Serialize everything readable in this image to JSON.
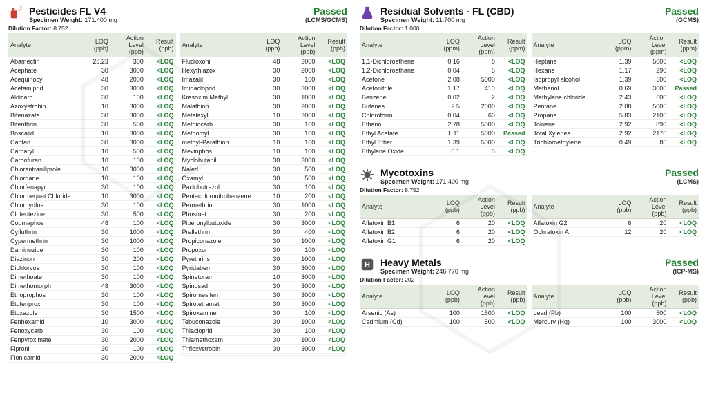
{
  "ui": {
    "col_analyte": "Analyte",
    "col_loq_ppb": "LOQ (ppb)",
    "col_loq_ppm": "LOQ (ppm)",
    "col_action_ppb": "Action Level (ppb)",
    "col_action_ppm": "Action Level (ppm)",
    "col_result_ppb": "Result (ppb)",
    "col_result_ppm": "Result (ppm)",
    "specimen_label": "Specimen Weight:",
    "dilution_label": "Dilution Factor:",
    "loq_text": "<LOQ",
    "passed_text": "Passed",
    "colors": {
      "pass_green": "#1a8a2b",
      "header_bg": "#e4ece0",
      "icon_red": "#d33a2c",
      "icon_purple": "#6d3fb3",
      "icon_grey": "#555"
    }
  },
  "pesticides": {
    "title": "Pesticides FL V4",
    "specimen": "171.400 mg",
    "status": "Passed",
    "method": "(LCMS/GCMS)",
    "dilution": "8.752",
    "left": [
      {
        "a": "Abamectin",
        "loq": "28.23",
        "al": "300",
        "r": "<LOQ"
      },
      {
        "a": "Acephate",
        "loq": "30",
        "al": "3000",
        "r": "<LOQ"
      },
      {
        "a": "Acequinocyl",
        "loq": "48",
        "al": "2000",
        "r": "<LOQ"
      },
      {
        "a": "Acetamiprid",
        "loq": "30",
        "al": "3000",
        "r": "<LOQ"
      },
      {
        "a": "Aldicarb",
        "loq": "30",
        "al": "100",
        "r": "<LOQ"
      },
      {
        "a": "Azoxystrobin",
        "loq": "10",
        "al": "3000",
        "r": "<LOQ"
      },
      {
        "a": "Bifenazate",
        "loq": "30",
        "al": "3000",
        "r": "<LOQ"
      },
      {
        "a": "Bifenthrin",
        "loq": "30",
        "al": "500",
        "r": "<LOQ"
      },
      {
        "a": "Boscalid",
        "loq": "10",
        "al": "3000",
        "r": "<LOQ"
      },
      {
        "a": "Captan",
        "loq": "30",
        "al": "3000",
        "r": "<LOQ"
      },
      {
        "a": "Carbaryl",
        "loq": "10",
        "al": "500",
        "r": "<LOQ"
      },
      {
        "a": "Carbofuran",
        "loq": "10",
        "al": "100",
        "r": "<LOQ"
      },
      {
        "a": "Chlorantraniliprole",
        "loq": "10",
        "al": "3000",
        "r": "<LOQ"
      },
      {
        "a": "Chlordane",
        "loq": "10",
        "al": "100",
        "r": "<LOQ"
      },
      {
        "a": "Chlorfenapyr",
        "loq": "30",
        "al": "100",
        "r": "<LOQ"
      },
      {
        "a": "Chlormequat Chloride",
        "loq": "10",
        "al": "3000",
        "r": "<LOQ"
      },
      {
        "a": "Chlorpyrifos",
        "loq": "30",
        "al": "100",
        "r": "<LOQ"
      },
      {
        "a": "Clofentezine",
        "loq": "30",
        "al": "500",
        "r": "<LOQ"
      },
      {
        "a": "Coumaphos",
        "loq": "48",
        "al": "100",
        "r": "<LOQ"
      },
      {
        "a": "Cyfluthrin",
        "loq": "30",
        "al": "1000",
        "r": "<LOQ"
      },
      {
        "a": "Cypermethrin",
        "loq": "30",
        "al": "1000",
        "r": "<LOQ"
      },
      {
        "a": "Daminozide",
        "loq": "30",
        "al": "100",
        "r": "<LOQ"
      },
      {
        "a": "Diazinon",
        "loq": "30",
        "al": "200",
        "r": "<LOQ"
      },
      {
        "a": "Dichlorvos",
        "loq": "30",
        "al": "100",
        "r": "<LOQ"
      },
      {
        "a": "Dimethoate",
        "loq": "30",
        "al": "100",
        "r": "<LOQ"
      },
      {
        "a": "Dimethomorph",
        "loq": "48",
        "al": "3000",
        "r": "<LOQ"
      },
      {
        "a": "Ethoprophos",
        "loq": "30",
        "al": "100",
        "r": "<LOQ"
      },
      {
        "a": "Etofenprox",
        "loq": "30",
        "al": "100",
        "r": "<LOQ"
      },
      {
        "a": "Etoxazole",
        "loq": "30",
        "al": "1500",
        "r": "<LOQ"
      },
      {
        "a": "Fenhexamid",
        "loq": "10",
        "al": "3000",
        "r": "<LOQ"
      },
      {
        "a": "Fenoxycarb",
        "loq": "30",
        "al": "100",
        "r": "<LOQ"
      },
      {
        "a": "Fenpyroximate",
        "loq": "30",
        "al": "2000",
        "r": "<LOQ"
      },
      {
        "a": "Fipronil",
        "loq": "30",
        "al": "100",
        "r": "<LOQ"
      },
      {
        "a": "Flonicamid",
        "loq": "30",
        "al": "2000",
        "r": "<LOQ"
      }
    ],
    "right": [
      {
        "a": "Fludioxonil",
        "loq": "48",
        "al": "3000",
        "r": "<LOQ"
      },
      {
        "a": "Hexythiazox",
        "loq": "30",
        "al": "2000",
        "r": "<LOQ"
      },
      {
        "a": "Imazalil",
        "loq": "30",
        "al": "100",
        "r": "<LOQ"
      },
      {
        "a": "Imidacloprid",
        "loq": "30",
        "al": "3000",
        "r": "<LOQ"
      },
      {
        "a": "Kresoxim Methyl",
        "loq": "30",
        "al": "1000",
        "r": "<LOQ"
      },
      {
        "a": "Malathion",
        "loq": "30",
        "al": "2000",
        "r": "<LOQ"
      },
      {
        "a": "Metalaxyl",
        "loq": "10",
        "al": "3000",
        "r": "<LOQ"
      },
      {
        "a": "Methiocarb",
        "loq": "30",
        "al": "100",
        "r": "<LOQ"
      },
      {
        "a": "Methomyl",
        "loq": "30",
        "al": "100",
        "r": "<LOQ"
      },
      {
        "a": "methyl-Parathion",
        "loq": "10",
        "al": "100",
        "r": "<LOQ"
      },
      {
        "a": "Mevinphos",
        "loq": "10",
        "al": "100",
        "r": "<LOQ"
      },
      {
        "a": "Myclobutanil",
        "loq": "30",
        "al": "3000",
        "r": "<LOQ"
      },
      {
        "a": "Naled",
        "loq": "30",
        "al": "500",
        "r": "<LOQ"
      },
      {
        "a": "Oxamyl",
        "loq": "30",
        "al": "500",
        "r": "<LOQ"
      },
      {
        "a": "Paclobutrazol",
        "loq": "30",
        "al": "100",
        "r": "<LOQ"
      },
      {
        "a": "Pentachloronitrobenzene",
        "loq": "10",
        "al": "200",
        "r": "<LOQ"
      },
      {
        "a": "Permethrin",
        "loq": "30",
        "al": "1000",
        "r": "<LOQ"
      },
      {
        "a": "Phosmet",
        "loq": "30",
        "al": "200",
        "r": "<LOQ"
      },
      {
        "a": "Piperonylbutoxide",
        "loq": "30",
        "al": "3000",
        "r": "<LOQ"
      },
      {
        "a": "Prallethrin",
        "loq": "30",
        "al": "400",
        "r": "<LOQ"
      },
      {
        "a": "Propiconazole",
        "loq": "30",
        "al": "1000",
        "r": "<LOQ"
      },
      {
        "a": "Propoxur",
        "loq": "30",
        "al": "100",
        "r": "<LOQ"
      },
      {
        "a": "Pyrethrins",
        "loq": "30",
        "al": "1000",
        "r": "<LOQ"
      },
      {
        "a": "Pyridaben",
        "loq": "30",
        "al": "3000",
        "r": "<LOQ"
      },
      {
        "a": "Spinetoram",
        "loq": "10",
        "al": "3000",
        "r": "<LOQ"
      },
      {
        "a": "Spinosad",
        "loq": "30",
        "al": "3000",
        "r": "<LOQ"
      },
      {
        "a": "Spiromesifen",
        "loq": "30",
        "al": "3000",
        "r": "<LOQ"
      },
      {
        "a": "Spirotetramat",
        "loq": "30",
        "al": "3000",
        "r": "<LOQ"
      },
      {
        "a": "Spiroxamine",
        "loq": "30",
        "al": "100",
        "r": "<LOQ"
      },
      {
        "a": "Tebuconazole",
        "loq": "30",
        "al": "1000",
        "r": "<LOQ"
      },
      {
        "a": "Thiacloprid",
        "loq": "30",
        "al": "100",
        "r": "<LOQ"
      },
      {
        "a": "Thiamethoxam",
        "loq": "30",
        "al": "1000",
        "r": "<LOQ"
      },
      {
        "a": "Trifloxystrobin",
        "loq": "30",
        "al": "3000",
        "r": "<LOQ"
      },
      {
        "a": "",
        "loq": "",
        "al": "",
        "r": ""
      }
    ]
  },
  "solvents": {
    "title": "Residual Solvents - FL (CBD)",
    "specimen": "11.700 mg",
    "status": "Passed",
    "method": "(GCMS)",
    "dilution": "1.000",
    "left": [
      {
        "a": "1,1-Dichloroethene",
        "loq": "0.16",
        "al": "8",
        "r": "<LOQ"
      },
      {
        "a": "1,2-Dichloroethane",
        "loq": "0.04",
        "al": "5",
        "r": "<LOQ"
      },
      {
        "a": "Acetone",
        "loq": "2.08",
        "al": "5000",
        "r": "<LOQ"
      },
      {
        "a": "Acetonitrile",
        "loq": "1.17",
        "al": "410",
        "r": "<LOQ"
      },
      {
        "a": "Benzene",
        "loq": "0.02",
        "al": "2",
        "r": "<LOQ"
      },
      {
        "a": "Butanes",
        "loq": "2.5",
        "al": "2000",
        "r": "<LOQ"
      },
      {
        "a": "Chloroform",
        "loq": "0.04",
        "al": "60",
        "r": "<LOQ"
      },
      {
        "a": "Ethanol",
        "loq": "2.78",
        "al": "5000",
        "r": "<LOQ"
      },
      {
        "a": "Ethyl Acetate",
        "loq": "1.11",
        "al": "5000",
        "r": "Passed"
      },
      {
        "a": "Ethyl Ether",
        "loq": "1.39",
        "al": "5000",
        "r": "<LOQ"
      },
      {
        "a": "Ethylene Oxide",
        "loq": "0.1",
        "al": "5",
        "r": "<LOQ"
      }
    ],
    "right": [
      {
        "a": "Heptane",
        "loq": "1.39",
        "al": "5000",
        "r": "<LOQ"
      },
      {
        "a": "Hexane",
        "loq": "1.17",
        "al": "290",
        "r": "<LOQ"
      },
      {
        "a": "Isopropyl alcohol",
        "loq": "1.39",
        "al": "500",
        "r": "<LOQ"
      },
      {
        "a": "Methanol",
        "loq": "0.69",
        "al": "3000",
        "r": "Passed"
      },
      {
        "a": "Methylene chloride",
        "loq": "2.43",
        "al": "600",
        "r": "<LOQ"
      },
      {
        "a": "Pentane",
        "loq": "2.08",
        "al": "5000",
        "r": "<LOQ"
      },
      {
        "a": "Propane",
        "loq": "5.83",
        "al": "2100",
        "r": "<LOQ"
      },
      {
        "a": "Toluene",
        "loq": "2.92",
        "al": "890",
        "r": "<LOQ"
      },
      {
        "a": "Total Xylenes",
        "loq": "2.92",
        "al": "2170",
        "r": "<LOQ"
      },
      {
        "a": "Trichloroethylene",
        "loq": "0.49",
        "al": "80",
        "r": "<LOQ"
      }
    ]
  },
  "myco": {
    "title": "Mycotoxins",
    "specimen": "171.400 mg",
    "status": "Passed",
    "method": "(LCMS)",
    "dilution": "8.752",
    "left": [
      {
        "a": "Aflatoxin B1",
        "loq": "6",
        "al": "20",
        "r": "<LOQ"
      },
      {
        "a": "Aflatoxin B2",
        "loq": "6",
        "al": "20",
        "r": "<LOQ"
      },
      {
        "a": "Aflatoxin G1",
        "loq": "6",
        "al": "20",
        "r": "<LOQ"
      }
    ],
    "right": [
      {
        "a": "Aflatoxin G2",
        "loq": "6",
        "al": "20",
        "r": "<LOQ"
      },
      {
        "a": "Ochratoxin A",
        "loq": "12",
        "al": "20",
        "r": "<LOQ"
      }
    ]
  },
  "metals": {
    "title": "Heavy Metals",
    "specimen": "246.770 mg",
    "status": "Passed",
    "method": "(ICP-MS)",
    "dilution": "202",
    "left": [
      {
        "a": "Arsenic (As)",
        "loq": "100",
        "al": "1500",
        "r": "<LOQ"
      },
      {
        "a": "Cadmium (Cd)",
        "loq": "100",
        "al": "500",
        "r": "<LOQ"
      }
    ],
    "right": [
      {
        "a": "Lead (Pb)",
        "loq": "100",
        "al": "500",
        "r": "<LOQ"
      },
      {
        "a": "Mercury (Hg)",
        "loq": "100",
        "al": "3000",
        "r": "<LOQ"
      }
    ]
  }
}
